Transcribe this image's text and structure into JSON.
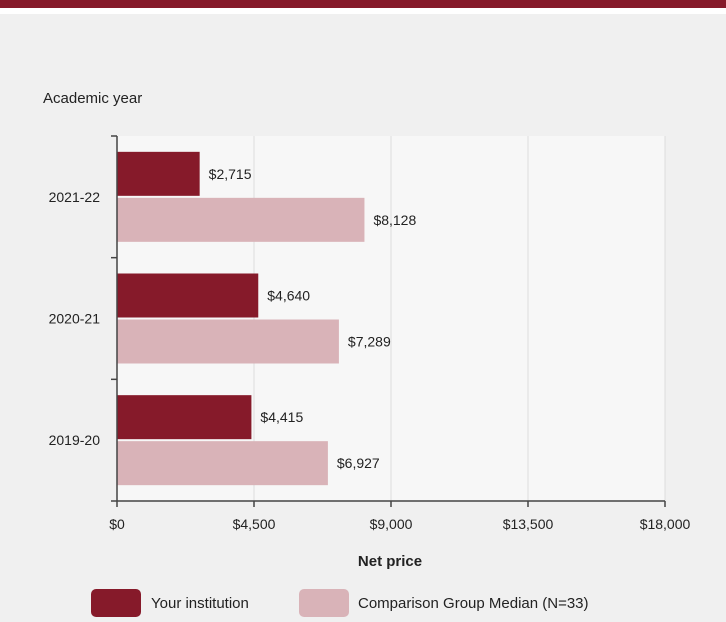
{
  "chart_data": {
    "type": "bar",
    "orientation": "horizontal",
    "ylabel": "Academic year",
    "xlabel": "Net price",
    "categories": [
      "2021-22",
      "2020-21",
      "2019-20"
    ],
    "series": [
      {
        "name": "Your institution",
        "values": [
          2715,
          4640,
          4415
        ],
        "labels": [
          "$2,715",
          "$4,640",
          "$4,415"
        ],
        "color": "#861a2a"
      },
      {
        "name": "Comparison Group Median (N=33)",
        "values": [
          8128,
          7289,
          6927
        ],
        "labels": [
          "$8,128",
          "$7,289",
          "$6,927"
        ],
        "color": "#d9b3b8"
      }
    ],
    "xlim": [
      0,
      18000
    ],
    "xticks": [
      0,
      4500,
      9000,
      13500,
      18000
    ],
    "xtick_labels": [
      "$0",
      "$4,500",
      "$9,000",
      "$13,500",
      "$18,000"
    ],
    "grid": true,
    "legend": "bottom",
    "colors": {
      "accent": "#861a2a",
      "plot_background": "#f7f7f7",
      "gridline": "#dcdcdc"
    }
  }
}
